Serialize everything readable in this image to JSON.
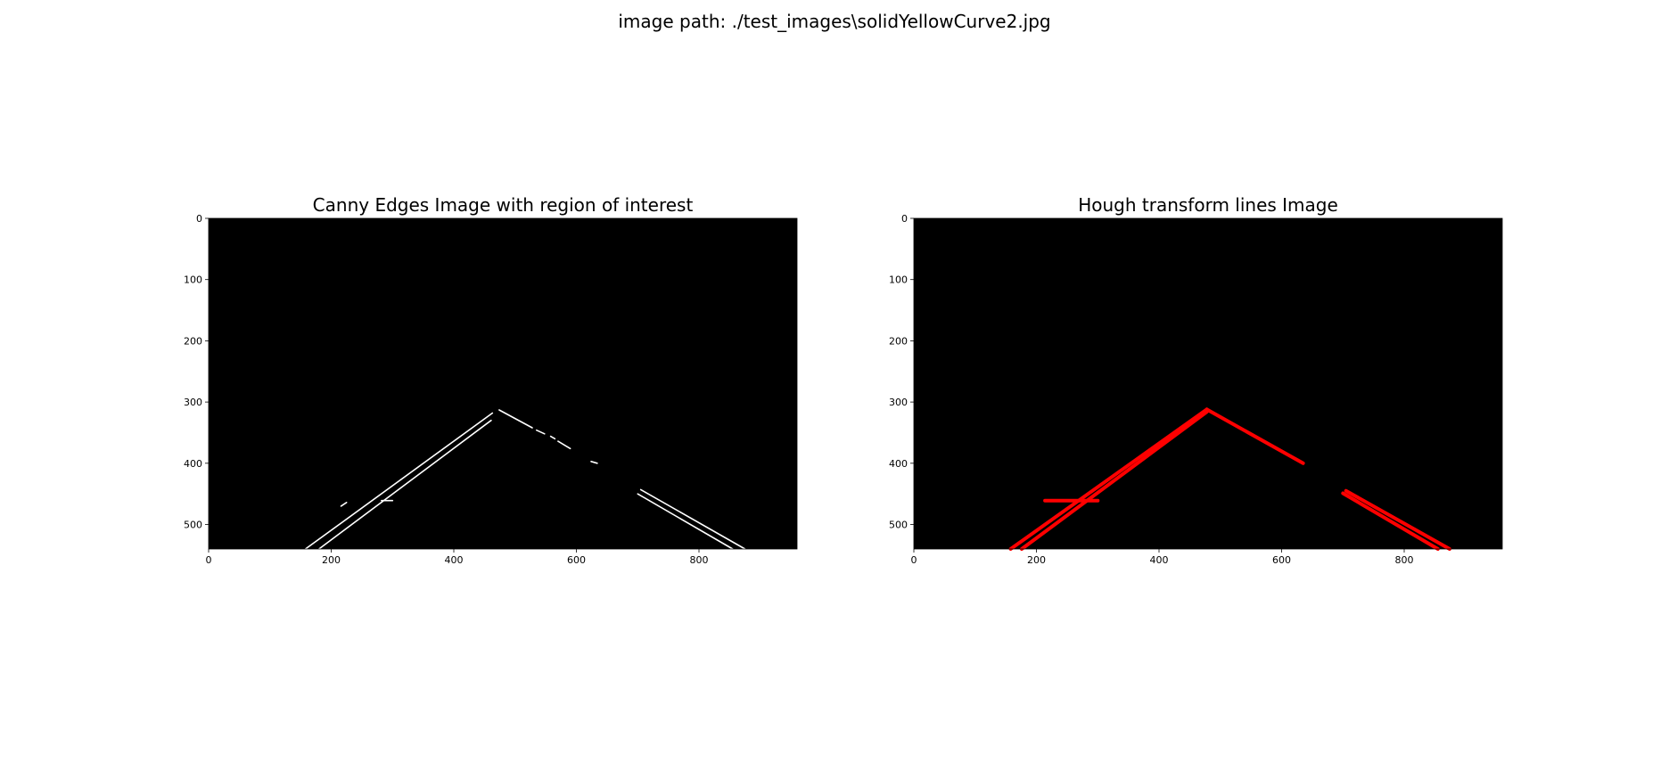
{
  "figure": {
    "suptitle": "image path: ./test_images\\solidYellowCurve2.jpg"
  },
  "chart_data": [
    {
      "type": "image",
      "title": "Canny Edges Image with region of interest",
      "xlim": [
        0,
        960
      ],
      "ylim": [
        540,
        0
      ],
      "xticks": [
        0,
        200,
        400,
        600,
        800
      ],
      "yticks": [
        0,
        100,
        200,
        300,
        400,
        500
      ],
      "background": "#000000",
      "stroke_color": "#ffffff",
      "features": [
        {
          "name": "left-lane-outer-edge",
          "points": [
            [
              158,
              540
            ],
            [
              463,
              318
            ]
          ]
        },
        {
          "name": "left-lane-inner-edge",
          "points": [
            [
              180,
              540
            ],
            [
              461,
              330
            ]
          ]
        },
        {
          "name": "left-lane-small-edge",
          "points": [
            [
              216,
              470
            ],
            [
              225,
              464
            ]
          ]
        },
        {
          "name": "left-lane-small-edge-2",
          "points": [
            [
              282,
              461
            ],
            [
              300,
              461
            ]
          ]
        },
        {
          "name": "right-dash-1",
          "points": [
            [
              474,
              313
            ],
            [
              528,
              342
            ]
          ]
        },
        {
          "name": "right-dash-2",
          "points": [
            [
              535,
              346
            ],
            [
              548,
              352
            ]
          ]
        },
        {
          "name": "right-dash-3",
          "points": [
            [
              558,
              356
            ],
            [
              565,
              360
            ]
          ]
        },
        {
          "name": "right-dash-4",
          "points": [
            [
              570,
              364
            ],
            [
              590,
              376
            ]
          ]
        },
        {
          "name": "right-dash-5",
          "points": [
            [
              624,
              397
            ],
            [
              634,
              400
            ]
          ]
        },
        {
          "name": "right-lane-outer-edge",
          "points": [
            [
              705,
              443
            ],
            [
              875,
              540
            ]
          ]
        },
        {
          "name": "right-lane-inner-edge",
          "points": [
            [
              700,
              450
            ],
            [
              855,
              540
            ]
          ]
        }
      ]
    },
    {
      "type": "image",
      "title": "Hough transform lines Image",
      "xlim": [
        0,
        960
      ],
      "ylim": [
        540,
        0
      ],
      "xticks": [
        0,
        200,
        400,
        600,
        800
      ],
      "yticks": [
        0,
        100,
        200,
        300,
        400,
        500
      ],
      "background": "#000000",
      "stroke_color": "#ff0000",
      "features": [
        {
          "name": "left-lane-line-1",
          "points": [
            [
              158,
              540
            ],
            [
              478,
              312
            ]
          ]
        },
        {
          "name": "left-lane-line-2",
          "points": [
            [
              176,
              540
            ],
            [
              478,
              316
            ]
          ]
        },
        {
          "name": "horizontal-noise-line",
          "points": [
            [
              214,
              461
            ],
            [
              300,
              461
            ]
          ]
        },
        {
          "name": "right-lane-upper-line",
          "points": [
            [
              478,
              312
            ],
            [
              635,
              400
            ]
          ]
        },
        {
          "name": "right-lane-lower-line-1",
          "points": [
            [
              705,
              445
            ],
            [
              874,
              540
            ]
          ]
        },
        {
          "name": "right-lane-lower-line-2",
          "points": [
            [
              700,
              449
            ],
            [
              855,
              540
            ]
          ]
        }
      ]
    }
  ]
}
